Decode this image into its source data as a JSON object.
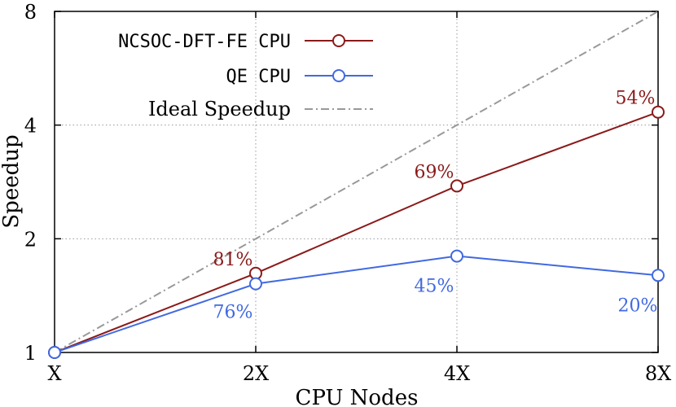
{
  "chart_data": {
    "type": "line",
    "xlabel": "CPU Nodes",
    "ylabel": "Speedup",
    "y_scale": "log2",
    "ylim": [
      1,
      8
    ],
    "categories": [
      "X",
      "2X",
      "4X",
      "8X"
    ],
    "y_ticks": [
      "1",
      "2",
      "4",
      "8"
    ],
    "grid": "dotted",
    "legend_placement": "top-left",
    "series": [
      {
        "name": "NCSOC-DFT-FE CPU",
        "color": "#8b1a1a",
        "marker": "open-circle",
        "values": [
          1.0,
          1.62,
          2.76,
          4.33
        ],
        "labels": [
          "",
          "81%",
          "69%",
          "54%"
        ]
      },
      {
        "name": "QE CPU",
        "color": "#4169e1",
        "marker": "open-circle",
        "values": [
          1.0,
          1.52,
          1.8,
          1.6
        ],
        "labels": [
          "",
          "76%",
          "45%",
          "20%"
        ]
      },
      {
        "name": "Ideal Speedup",
        "color": "#999999",
        "style": "dash-dot",
        "values": [
          1,
          2,
          4,
          8
        ]
      }
    ]
  }
}
